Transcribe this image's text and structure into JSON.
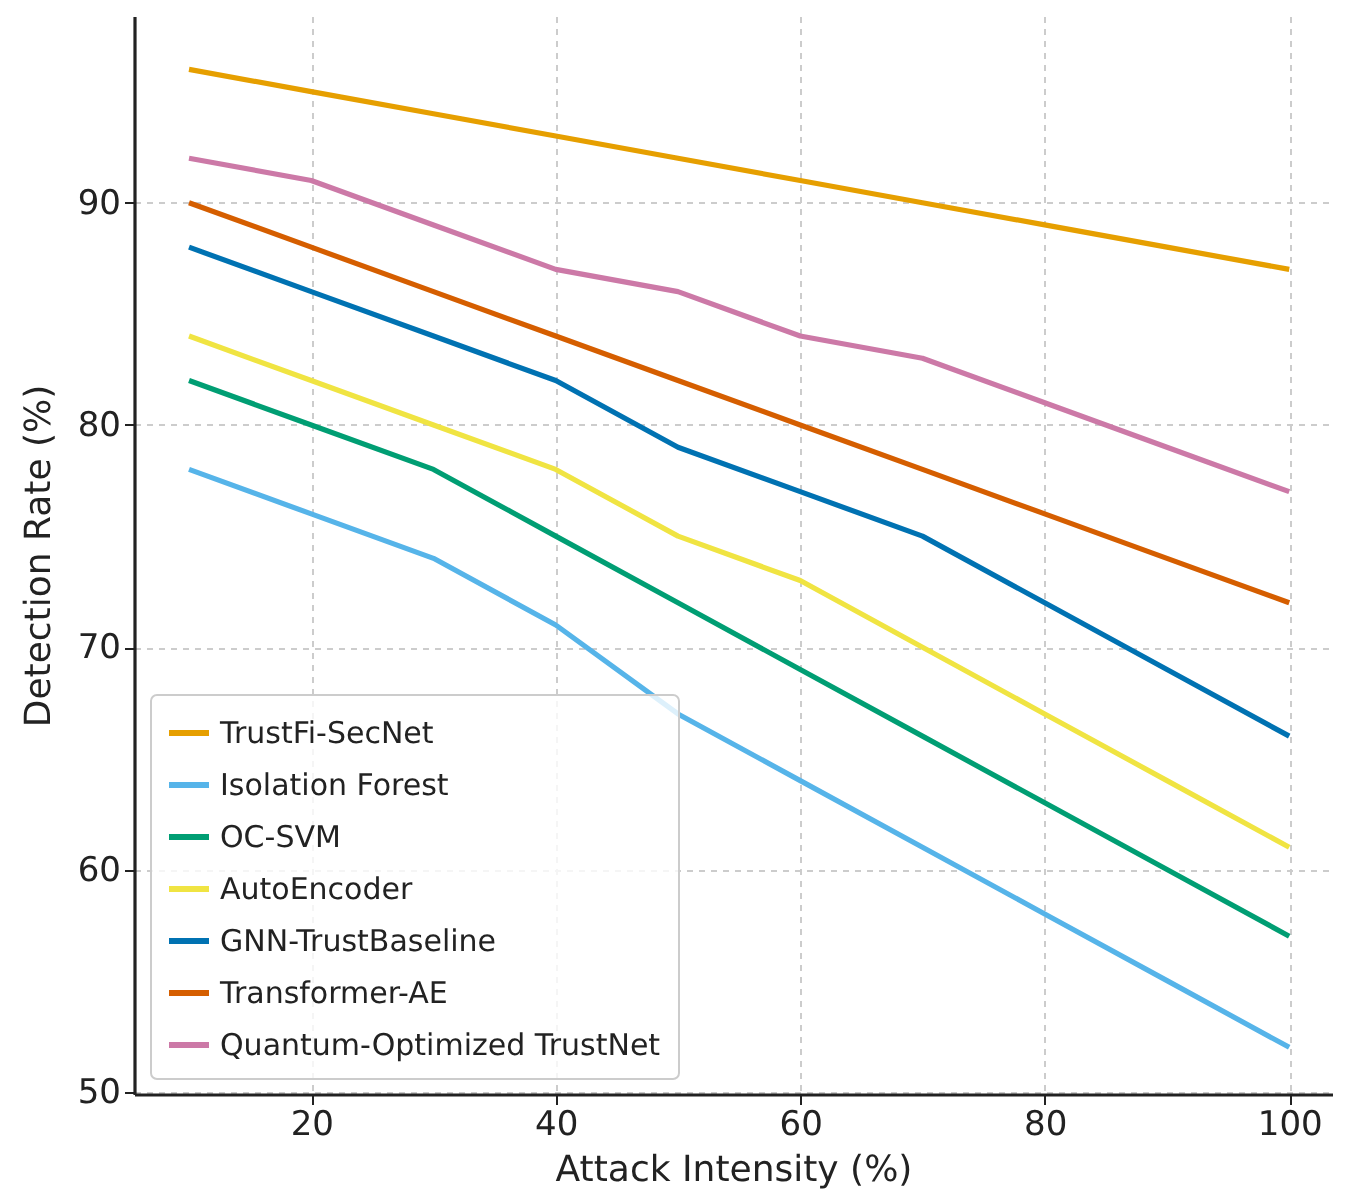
{
  "chart_data": {
    "type": "line",
    "xlabel": "Attack Intensity (%)",
    "ylabel": "Detection Rate (%)",
    "x": [
      10,
      20,
      30,
      40,
      50,
      60,
      70,
      80,
      90,
      100
    ],
    "xlim": [
      5.5,
      103.5
    ],
    "xticks": [
      20,
      40,
      60,
      80,
      100
    ],
    "ylim": [
      49.9,
      98.4
    ],
    "yticks": [
      50,
      60,
      70,
      80,
      90
    ],
    "grid": true,
    "legend": "bottom left",
    "marker": "none",
    "line_style": "solid",
    "series": [
      {
        "name": "TrustFi-SecNet",
        "color": "#e69f00",
        "values": [
          96,
          95,
          94,
          93,
          92,
          91,
          90,
          89,
          88,
          87
        ]
      },
      {
        "name": "Isolation Forest",
        "color": "#56b4e9",
        "values": [
          78,
          76,
          74,
          71,
          67,
          64,
          61,
          58,
          55,
          52
        ]
      },
      {
        "name": "OC-SVM",
        "color": "#009e73",
        "values": [
          82,
          80,
          78,
          75,
          72,
          69,
          66,
          63,
          60,
          57
        ]
      },
      {
        "name": "AutoEncoder",
        "color": "#f0e442",
        "values": [
          84,
          82,
          80,
          78,
          75,
          73,
          70,
          67,
          64,
          61
        ]
      },
      {
        "name": "GNN-TrustBaseline",
        "color": "#0072b2",
        "values": [
          88,
          86,
          84,
          82,
          79,
          77,
          75,
          72,
          69,
          66
        ]
      },
      {
        "name": "Transformer-AE",
        "color": "#d55e00",
        "values": [
          90,
          88,
          86,
          84,
          82,
          80,
          78,
          76,
          74,
          72
        ]
      },
      {
        "name": "Quantum-Optimized TrustNet",
        "color": "#cc79a7",
        "values": [
          92,
          91,
          89,
          87,
          86,
          84,
          83,
          81,
          79,
          77
        ]
      }
    ]
  }
}
